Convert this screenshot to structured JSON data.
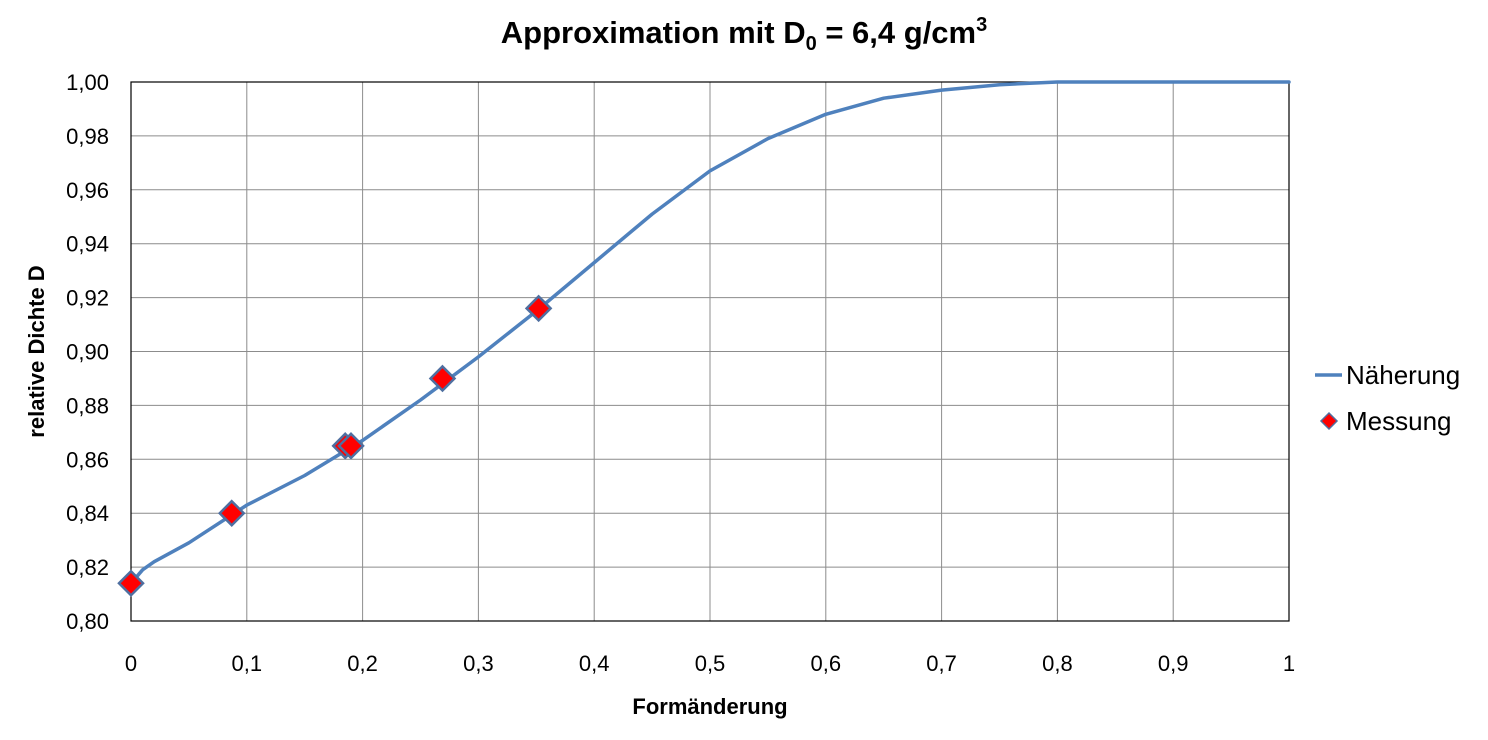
{
  "chart_data": {
    "type": "line",
    "title": {
      "main": "Approximation mit D",
      "subscript": "0",
      "rest": " = 6,4 g/cm",
      "superscript": "3"
    },
    "xlabel": "Formänderung",
    "ylabel": "relative Dichte D",
    "xlim": [
      0,
      1
    ],
    "ylim": [
      0.8,
      1.0
    ],
    "x_ticks": [
      "0",
      "0,1",
      "0,2",
      "0,3",
      "0,4",
      "0,5",
      "0,6",
      "0,7",
      "0,8",
      "0,9",
      "1"
    ],
    "y_ticks": [
      "0,80",
      "0,82",
      "0,84",
      "0,86",
      "0,88",
      "0,90",
      "0,92",
      "0,94",
      "0,96",
      "0,98",
      "1,00"
    ],
    "grid": true,
    "legend_position": "right",
    "series": [
      {
        "name": "Näherung",
        "kind": "line",
        "color": "#4f81bd",
        "points": [
          [
            0.0,
            0.814
          ],
          [
            0.01,
            0.819
          ],
          [
            0.02,
            0.822
          ],
          [
            0.05,
            0.829
          ],
          [
            0.1,
            0.843
          ],
          [
            0.15,
            0.854
          ],
          [
            0.2,
            0.867
          ],
          [
            0.25,
            0.882
          ],
          [
            0.3,
            0.898
          ],
          [
            0.35,
            0.915
          ],
          [
            0.4,
            0.933
          ],
          [
            0.45,
            0.951
          ],
          [
            0.5,
            0.967
          ],
          [
            0.55,
            0.979
          ],
          [
            0.6,
            0.988
          ],
          [
            0.65,
            0.994
          ],
          [
            0.7,
            0.997
          ],
          [
            0.75,
            0.999
          ],
          [
            0.8,
            1.0
          ],
          [
            0.9,
            1.0
          ],
          [
            1.0,
            1.0
          ]
        ]
      },
      {
        "name": "Messung",
        "kind": "scatter",
        "marker": "diamond",
        "color": "#ff0000",
        "points": [
          [
            0.0,
            0.814
          ],
          [
            0.087,
            0.84
          ],
          [
            0.185,
            0.865
          ],
          [
            0.19,
            0.865
          ],
          [
            0.269,
            0.89
          ],
          [
            0.352,
            0.916
          ]
        ]
      }
    ]
  }
}
